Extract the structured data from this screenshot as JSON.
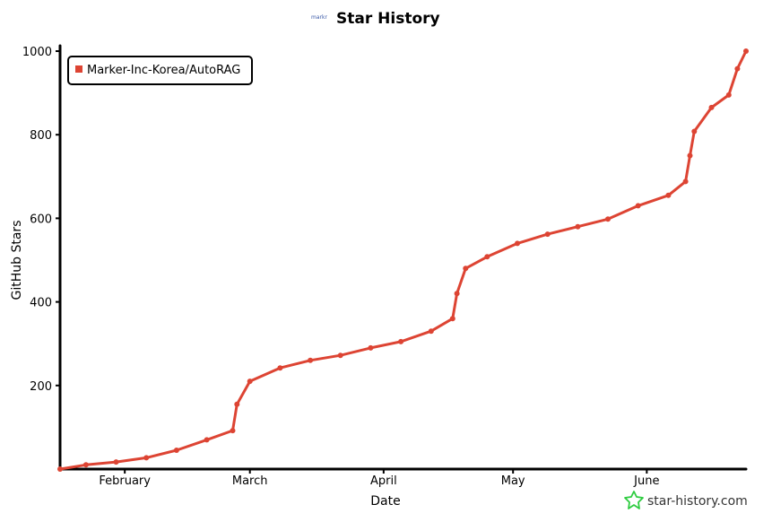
{
  "header": {
    "logo_text": "markr",
    "title": "Star History"
  },
  "watermark": {
    "text": "star-history.com",
    "icon": "star-outline-icon",
    "icon_color": "#2ecc40"
  },
  "chart_data": {
    "type": "line",
    "title": "Star History",
    "xlabel": "Date",
    "ylabel": "GitHub Stars",
    "x_ticks": [
      "February",
      "March",
      "April",
      "May",
      "June"
    ],
    "y_ticks": [
      200,
      400,
      600,
      800,
      1000
    ],
    "ylim": [
      0,
      1000
    ],
    "xlim": [
      "2024-01-17",
      "2024-06-24"
    ],
    "grid": false,
    "legend_position": "top-left",
    "series": [
      {
        "name": "Marker-Inc-Korea/AutoRAG",
        "color": "#dd4433",
        "points": [
          {
            "x": "2024-01-17",
            "y": 0
          },
          {
            "x": "2024-01-23",
            "y": 10
          },
          {
            "x": "2024-01-30",
            "y": 17
          },
          {
            "x": "2024-02-06",
            "y": 27
          },
          {
            "x": "2024-02-13",
            "y": 45
          },
          {
            "x": "2024-02-20",
            "y": 70
          },
          {
            "x": "2024-02-26",
            "y": 92
          },
          {
            "x": "2024-02-27",
            "y": 155
          },
          {
            "x": "2024-03-01",
            "y": 210
          },
          {
            "x": "2024-03-08",
            "y": 242
          },
          {
            "x": "2024-03-15",
            "y": 260
          },
          {
            "x": "2024-03-22",
            "y": 272
          },
          {
            "x": "2024-03-29",
            "y": 290
          },
          {
            "x": "2024-04-05",
            "y": 305
          },
          {
            "x": "2024-04-12",
            "y": 330
          },
          {
            "x": "2024-04-17",
            "y": 360
          },
          {
            "x": "2024-04-18",
            "y": 420
          },
          {
            "x": "2024-04-20",
            "y": 480
          },
          {
            "x": "2024-04-25",
            "y": 508
          },
          {
            "x": "2024-05-02",
            "y": 540
          },
          {
            "x": "2024-05-09",
            "y": 562
          },
          {
            "x": "2024-05-16",
            "y": 580
          },
          {
            "x": "2024-05-23",
            "y": 598
          },
          {
            "x": "2024-05-30",
            "y": 630
          },
          {
            "x": "2024-06-06",
            "y": 655
          },
          {
            "x": "2024-06-10",
            "y": 688
          },
          {
            "x": "2024-06-11",
            "y": 750
          },
          {
            "x": "2024-06-12",
            "y": 808
          },
          {
            "x": "2024-06-16",
            "y": 865
          },
          {
            "x": "2024-06-20",
            "y": 895
          },
          {
            "x": "2024-06-22",
            "y": 958
          },
          {
            "x": "2024-06-24",
            "y": 1000
          }
        ]
      }
    ]
  }
}
